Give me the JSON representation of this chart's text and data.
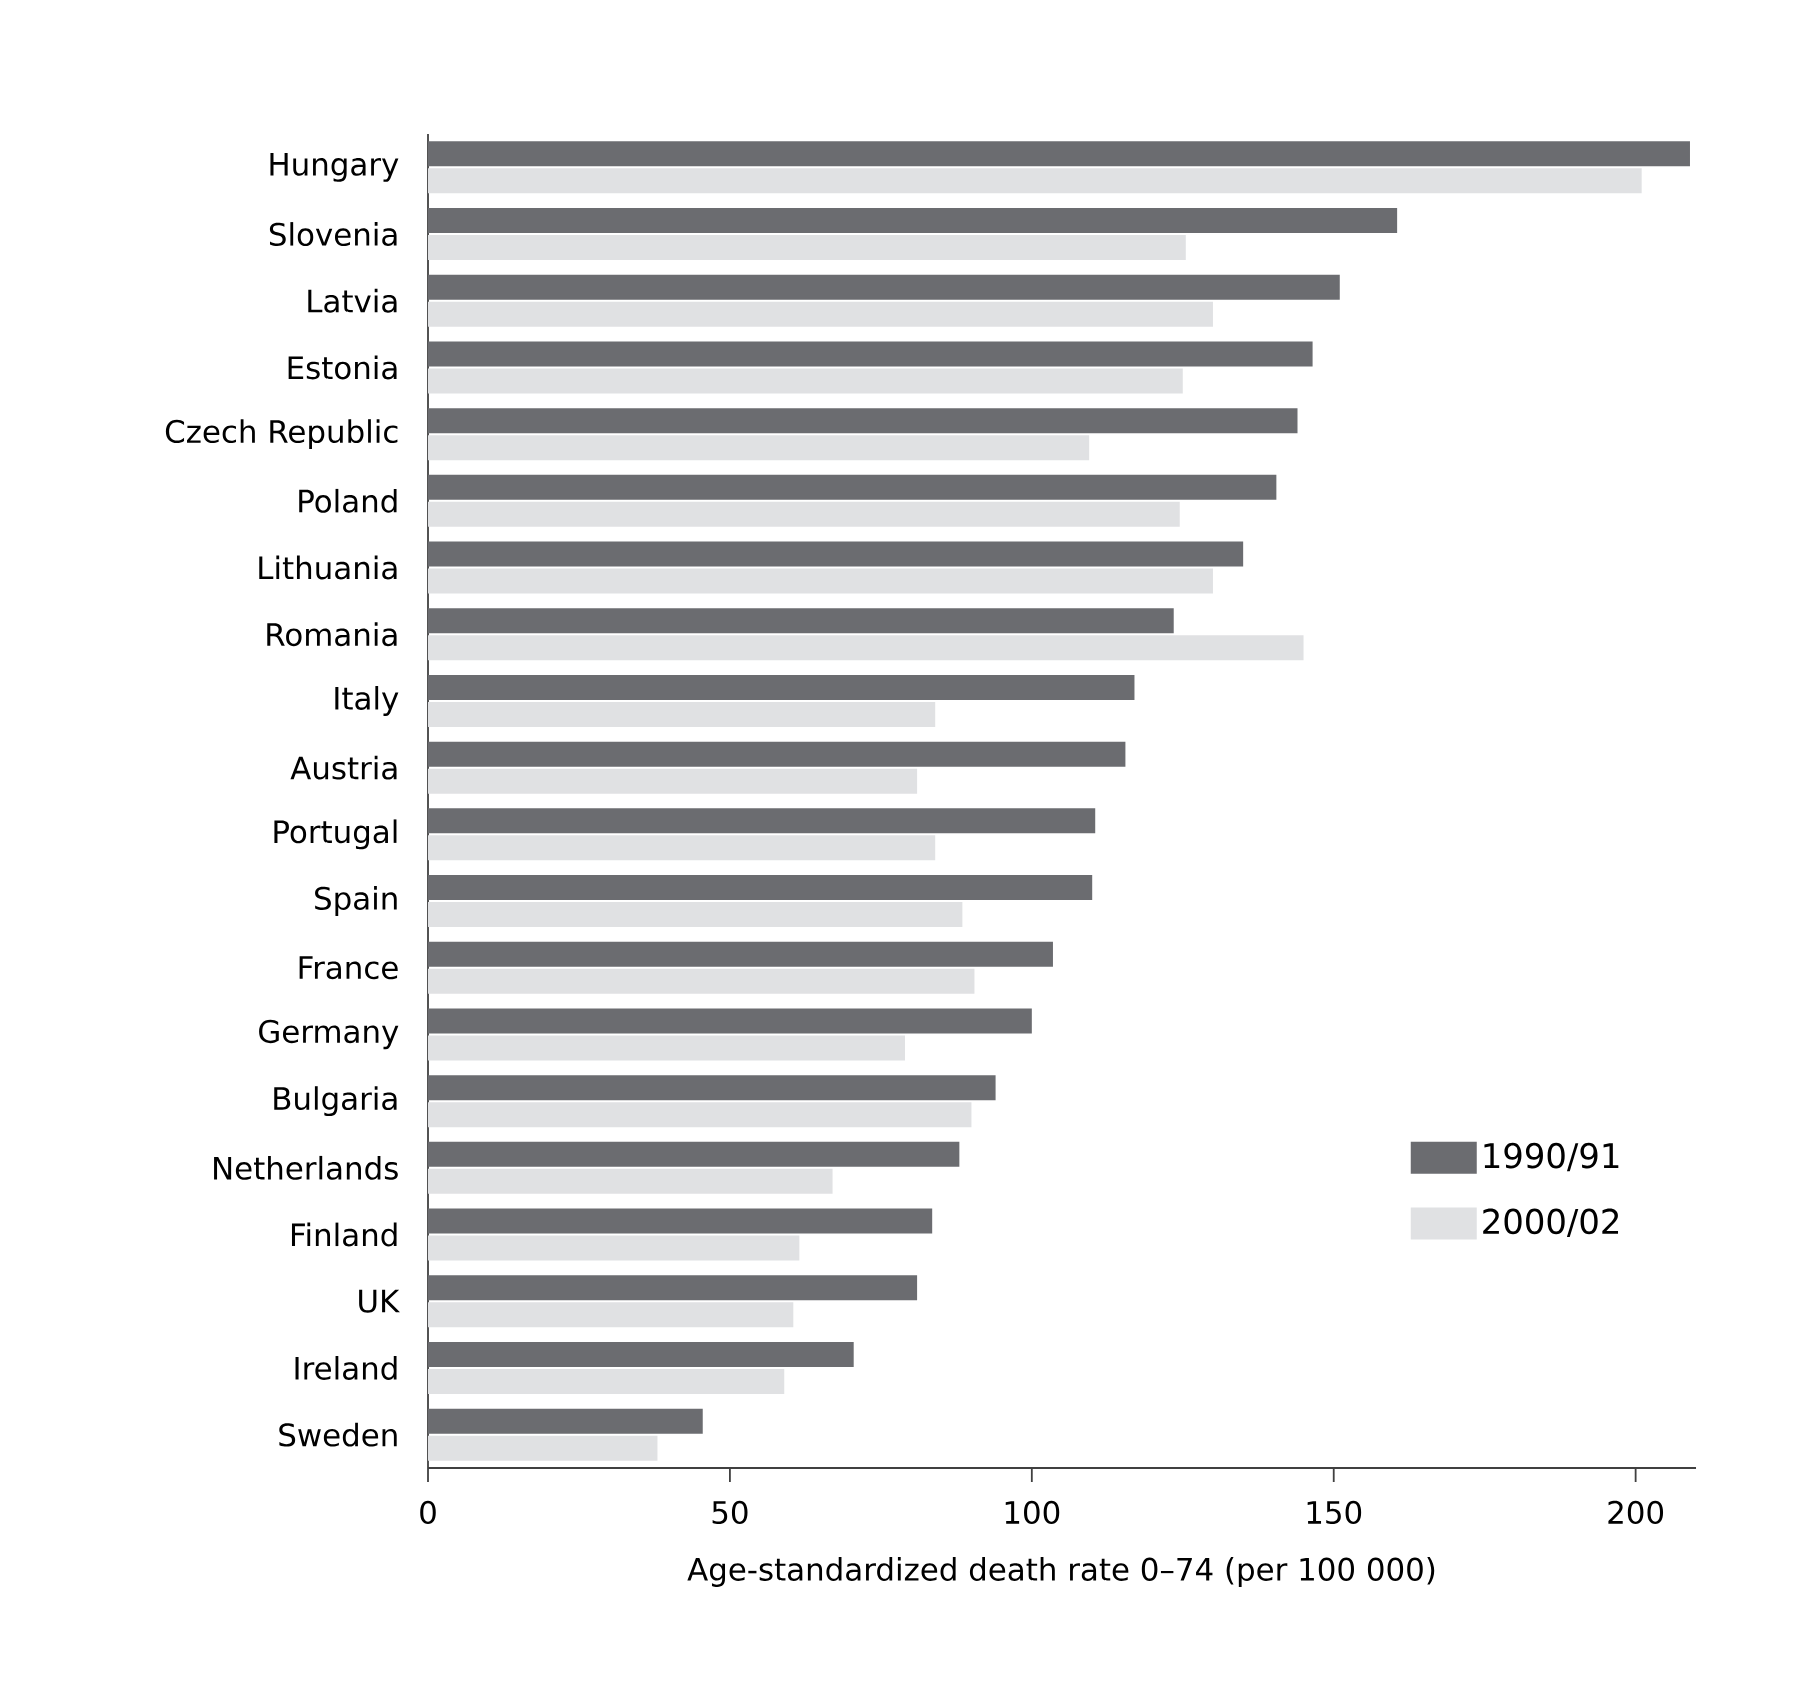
{
  "chart_data": {
    "type": "bar",
    "orientation": "horizontal",
    "xlabel": "Age-standardized death rate 0–74 (per 100 000)",
    "categories": [
      "Hungary",
      "Slovenia",
      "Latvia",
      "Estonia",
      "Czech Republic",
      "Poland",
      "Lithuania",
      "Romania",
      "Italy",
      "Austria",
      "Portugal",
      "Spain",
      "France",
      "Germany",
      "Bulgaria",
      "Netherlands",
      "Finland",
      "UK",
      "Ireland",
      "Sweden"
    ],
    "series": [
      {
        "name": "1990/91",
        "color": "#6b6c70",
        "values": [
          209,
          160.5,
          151,
          146.5,
          144,
          140.5,
          135,
          123.5,
          117,
          115.5,
          110.5,
          110,
          103.5,
          100,
          94,
          88,
          83.5,
          81,
          70.5,
          45.5
        ]
      },
      {
        "name": "2000/02",
        "color": "#e0e1e3",
        "values": [
          201,
          125.5,
          130,
          125,
          109.5,
          124.5,
          130,
          145,
          84,
          81,
          84,
          88.5,
          90.5,
          79,
          90,
          67,
          61.5,
          60.5,
          59,
          38
        ]
      }
    ],
    "xlim": [
      0,
      210
    ],
    "xticks": [
      0,
      50,
      100,
      150,
      200
    ],
    "grid": false,
    "legend": "right"
  }
}
